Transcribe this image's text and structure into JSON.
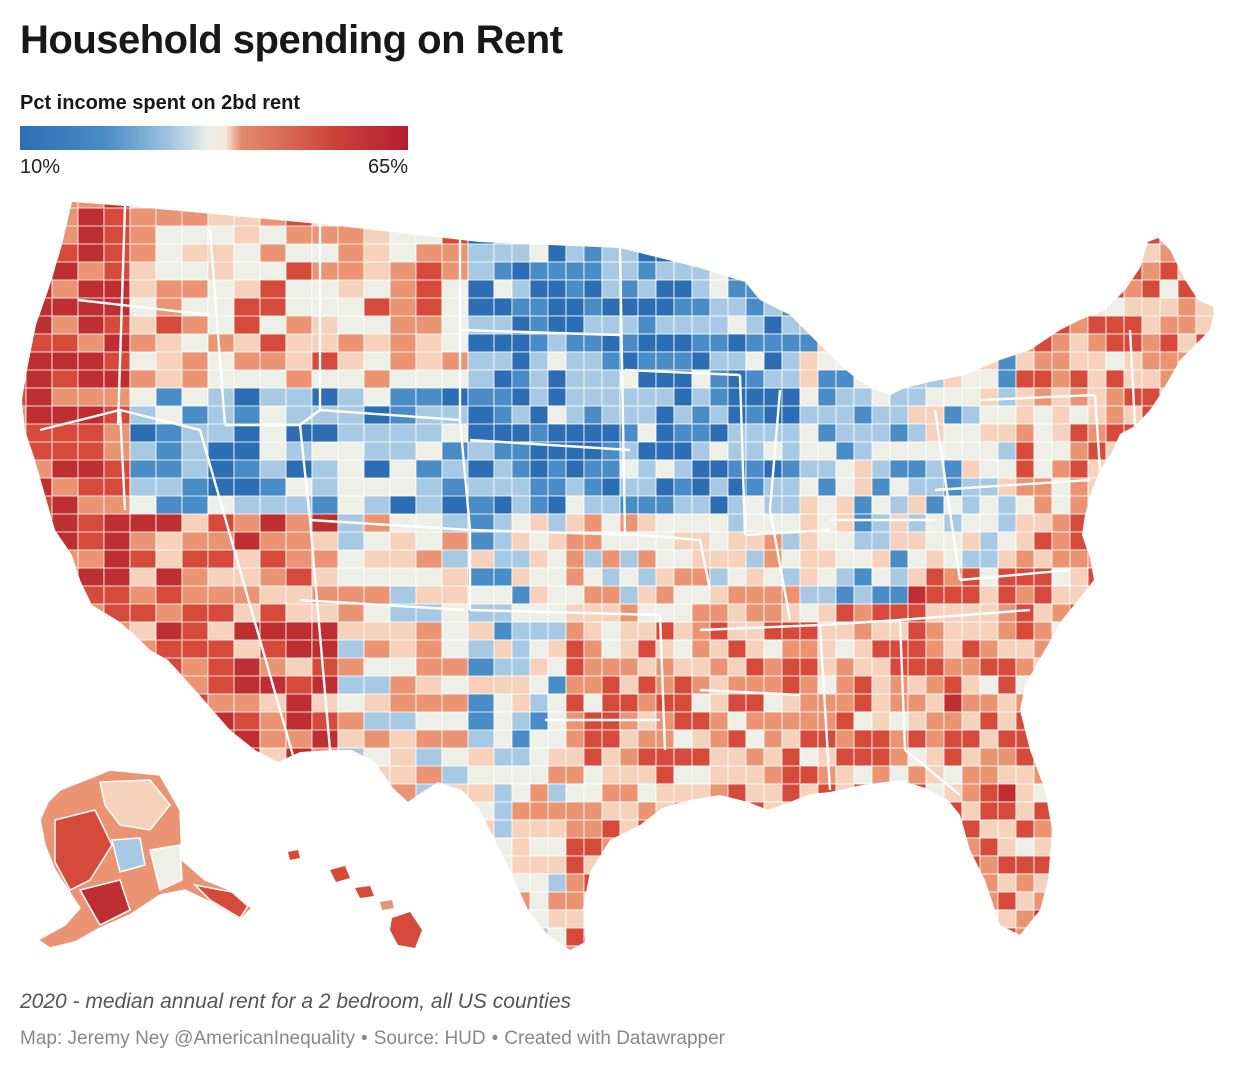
{
  "header": {
    "title": "Household spending on Rent"
  },
  "legend": {
    "title": "Pct income spent on 2bd rent",
    "min_label": "10%",
    "max_label": "65%",
    "colors": [
      "#2d6db4",
      "#4a8cc6",
      "#9cc2e0",
      "#eef0e8",
      "#f6e6d4",
      "#e38b6d",
      "#cc3f3a",
      "#b51d30"
    ]
  },
  "map": {
    "region": "all US counties",
    "insets": [
      "alaska",
      "hawaii"
    ],
    "palette": {
      "deep_blue": "#2d6db4",
      "blue": "#4a8cc6",
      "light_blue": "#a8c9e3",
      "pale": "#eef0e8",
      "peach": "#f6d2bc",
      "salmon": "#eb9473",
      "red": "#d64a3b",
      "deep_red": "#bf2f32"
    }
  },
  "footer": {
    "subtitle": "2020 - median annual rent for a 2 bedroom, all US counties",
    "credit": "Map: Jeremy Ney @AmericanInequality",
    "source": "Source: HUD",
    "tool": "Created with Datawrapper",
    "separator": "•"
  }
}
